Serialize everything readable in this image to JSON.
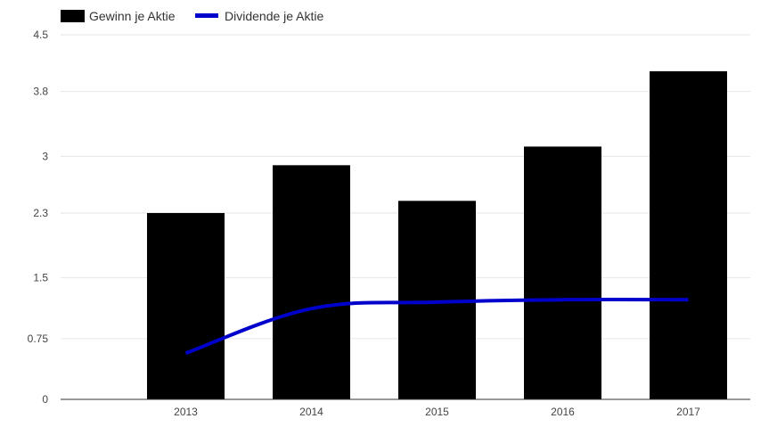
{
  "chart_data": {
    "type": "bar",
    "categories": [
      "2013",
      "2014",
      "2015",
      "2016",
      "2017"
    ],
    "series": [
      {
        "name": "Gewinn je Aktie",
        "type": "bar",
        "values": [
          2.3,
          2.89,
          2.45,
          3.12,
          4.05
        ],
        "color": "#000000"
      },
      {
        "name": "Dividende je Aktie",
        "type": "line",
        "values": [
          0.57,
          1.12,
          1.2,
          1.23,
          1.23
        ],
        "color": "#0000cc"
      }
    ],
    "y_ticks": [
      "0",
      "0.75",
      "1.5",
      "2.3",
      "3",
      "3.8",
      "4.5"
    ],
    "ylim": [
      0,
      4.5
    ],
    "grid": true,
    "legend_position": "top-left"
  }
}
